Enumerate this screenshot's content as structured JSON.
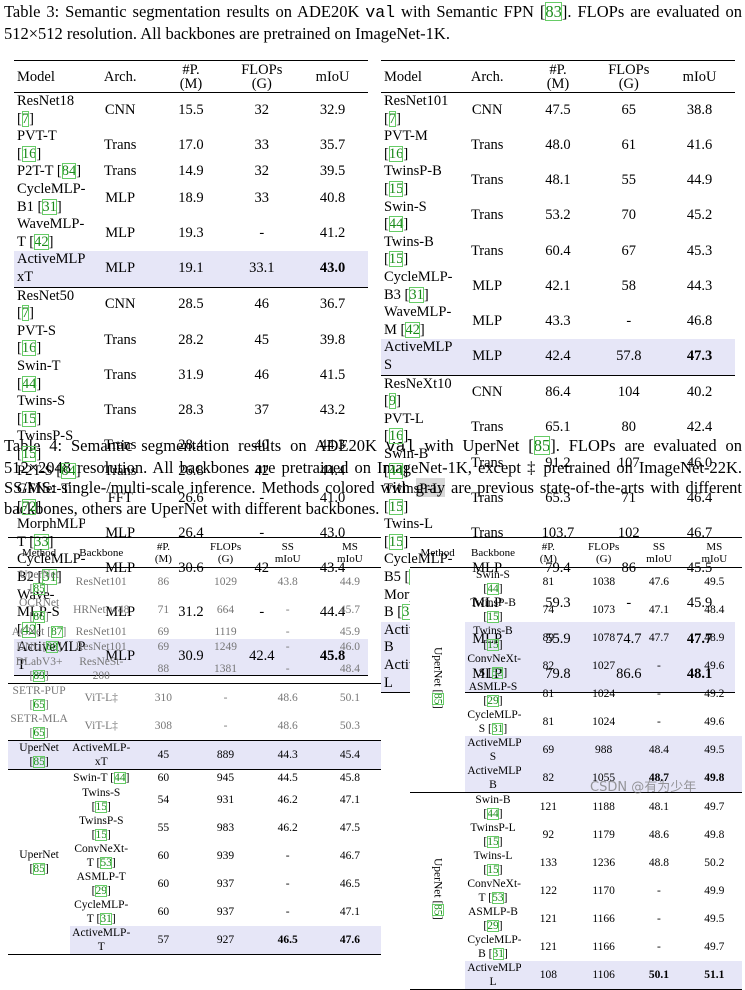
{
  "captions": [
    [
      "Table 3: Semantic segmentation results on ADE20K ",
      "val",
      " with Semantic FPN [83].  FLOPs are evaluated on 512×512 resolution. All backbones are pretrained on ImageNet-1K."
    ],
    [
      "Table 4: Semantic segmentation results on ADE20K ",
      "val",
      " with UperNet [85]. FLOPs are evaluated on 512×2048 resolution.  All backbones are pretrained on ImageNet-1K, except ‡ pretrained on ImageNet-22K. SS/MS: single-/multi-scale inference.  Methods colored with ",
      "gray",
      " are previous state-of-the-arts with different backbones, others are UperNet with different backbones."
    ]
  ],
  "tables": [
    {
      "header": [
        "Model",
        "Arch.",
        "#P.\n(M)",
        "FLOPs\n(G)",
        "mIoU"
      ],
      "rows": [
        {
          "cells": [
            "ResNet18 [7]",
            "CNN",
            "15.5",
            "32",
            "32.9"
          ]
        },
        {
          "cells": [
            "PVT-T [16]",
            "Trans",
            "17.0",
            "33",
            "35.7"
          ]
        },
        {
          "cells": [
            "P2T-T [84]",
            "Trans",
            "14.9",
            "32",
            "39.5"
          ]
        },
        {
          "cells": [
            "CycleMLP-B1 [31]",
            "MLP",
            "18.9",
            "33",
            "40.8"
          ]
        },
        {
          "cells": [
            "WaveMLP-T [42]",
            "MLP",
            "19.3",
            "-",
            "41.2"
          ]
        },
        {
          "cells": [
            "ActiveMLP-xT",
            "MLP",
            "19.1",
            "33.1",
            "43.0"
          ],
          "style": "best",
          "sep": true
        },
        {
          "cells": [
            "ResNet50 [7]",
            "CNN",
            "28.5",
            "46",
            "36.7"
          ]
        },
        {
          "cells": [
            "PVT-S [16]",
            "Trans",
            "28.2",
            "45",
            "39.8"
          ]
        },
        {
          "cells": [
            "Swin-T [44]",
            "Trans",
            "31.9",
            "46",
            "41.5"
          ]
        },
        {
          "cells": [
            "Twins-S [15]",
            "Trans",
            "28.3",
            "37",
            "43.2"
          ]
        },
        {
          "cells": [
            "TwinsP-S [15]",
            "Trans",
            "28.4",
            "40",
            "44.3"
          ]
        },
        {
          "cells": [
            "P2T-S [84]",
            "Trans",
            "26.8",
            "42",
            "44.4"
          ]
        },
        {
          "cells": [
            "GFNet-T [72]",
            "FFT",
            "26.6",
            "-",
            "41.0"
          ]
        },
        {
          "cells": [
            "MorphMLP-T [33]",
            "MLP",
            "26.4",
            "-",
            "43.0"
          ]
        },
        {
          "cells": [
            "CycleMLP-B2 [31]",
            "MLP",
            "30.6",
            "42",
            "43.4"
          ]
        },
        {
          "cells": [
            "Wave-MLP-S [42]",
            "MLP",
            "31.2",
            "-",
            "44.4"
          ]
        },
        {
          "cells": [
            "ActiveMLP-T",
            "MLP",
            "30.9",
            "42.4",
            "45.8"
          ],
          "style": "best"
        }
      ]
    },
    {
      "header": [
        "Model",
        "Arch.",
        "#P.\n(M)",
        "FLOPs\n(G)",
        "mIoU"
      ],
      "rows": [
        {
          "cells": [
            "ResNet101 [7]",
            "CNN",
            "47.5",
            "65",
            "38.8"
          ]
        },
        {
          "cells": [
            "PVT-M [16]",
            "Trans",
            "48.0",
            "61",
            "41.6"
          ]
        },
        {
          "cells": [
            "TwinsP-B [15]",
            "Trans",
            "48.1",
            "55",
            "44.9"
          ]
        },
        {
          "cells": [
            "Swin-S [44]",
            "Trans",
            "53.2",
            "70",
            "45.2"
          ]
        },
        {
          "cells": [
            "Twins-B [15]",
            "Trans",
            "60.4",
            "67",
            "45.3"
          ]
        },
        {
          "cells": [
            "CycleMLP-B3 [31]",
            "MLP",
            "42.1",
            "58",
            "44.3"
          ]
        },
        {
          "cells": [
            "WaveMLP-M [42]",
            "MLP",
            "43.3",
            "-",
            "46.8"
          ]
        },
        {
          "cells": [
            "ActiveMLP-S",
            "MLP",
            "42.4",
            "57.8",
            "47.3"
          ],
          "style": "best",
          "sep": true
        },
        {
          "cells": [
            "ResNeXt101 [9]",
            "CNN",
            "86.4",
            "104",
            "40.2"
          ]
        },
        {
          "cells": [
            "PVT-L [16]",
            "Trans",
            "65.1",
            "80",
            "42.4"
          ]
        },
        {
          "cells": [
            "Swin-B [44]",
            "Trans",
            "91.2",
            "107",
            "46.0"
          ]
        },
        {
          "cells": [
            "TwinsP-L [15]",
            "Trans",
            "65.3",
            "71",
            "46.4"
          ]
        },
        {
          "cells": [
            "Twins-L [15]",
            "Trans",
            "103.7",
            "102",
            "46.7"
          ]
        },
        {
          "cells": [
            "CycleMLP-B5 [31]",
            "MLP",
            "79.4",
            "86",
            "45.5"
          ]
        },
        {
          "cells": [
            "MorphMLP-B [33]",
            "MLP",
            "59.3",
            "-",
            "45.9"
          ]
        },
        {
          "cells": [
            "ActiveMLP-B",
            "MLP",
            "55.9",
            "74.7",
            "47.7"
          ],
          "style": "best"
        },
        {
          "cells": [
            "ActiveMLP-L",
            "MLP",
            "79.8",
            "86.6",
            "48.1"
          ],
          "style": "best"
        }
      ]
    },
    {
      "header": [
        "Method",
        "Backbone",
        "#P.\n(M)",
        "FLOPs\n(G)",
        "SS\nmIoU",
        "MS\nmIoU"
      ],
      "groups": [
        {
          "method": "UperNet [85]",
          "rows": [
            {
              "cells": [
                "ResNet101",
                "86",
                "1029",
                "43.8",
                "44.9"
              ],
              "style": "gray"
            }
          ]
        },
        {
          "method": "OCRNet [86]",
          "rows": [
            {
              "cells": [
                "HRNet-w48",
                "71",
                "664",
                "-",
                "45.7"
              ],
              "style": "gray"
            }
          ]
        },
        {
          "method": "ACNet [87]",
          "rows": [
            {
              "cells": [
                "ResNet101",
                "69",
                "1119",
                "-",
                "45.9"
              ],
              "style": "gray"
            }
          ]
        },
        {
          "method": "DNL [88]",
          "rows": [
            {
              "cells": [
                "ResNet101",
                "69",
                "1249",
                "-",
                "46.0"
              ],
              "style": "gray"
            }
          ]
        },
        {
          "method": "DLabV3+ [89]",
          "rows": [
            {
              "cells": [
                "ResNeSt-200",
                "88",
                "1381",
                "-",
                "48.4"
              ],
              "style": "gray"
            }
          ],
          "sep": true
        },
        {
          "method": "SETR-PUP [65]",
          "rows": [
            {
              "cells": [
                "ViT-L‡",
                "310",
                "-",
                "48.6",
                "50.1"
              ],
              "style": "gray"
            }
          ]
        },
        {
          "method": "SETR-MLA [65]",
          "rows": [
            {
              "cells": [
                "ViT-L‡",
                "308",
                "-",
                "48.6",
                "50.3"
              ],
              "style": "gray"
            }
          ],
          "sep": true
        },
        {
          "method": "UperNet [85]",
          "rows": [
            {
              "cells": [
                "ActiveMLP-xT",
                "45",
                "889",
                "44.3",
                "45.4"
              ],
              "style": "active"
            }
          ],
          "sep": true
        },
        {
          "method": "UperNet [85]",
          "rows": [
            {
              "cells": [
                "Swin-T [44]",
                "60",
                "945",
                "44.5",
                "45.8"
              ]
            },
            {
              "cells": [
                "Twins-S [15]",
                "54",
                "931",
                "46.2",
                "47.1"
              ]
            },
            {
              "cells": [
                "TwinsP-S [15]",
                "55",
                "983",
                "46.2",
                "47.5"
              ]
            },
            {
              "cells": [
                "ConvNeXt-T [53]",
                "60",
                "939",
                "-",
                "46.7"
              ]
            },
            {
              "cells": [
                "ASMLP-T [29]",
                "60",
                "937",
                "-",
                "46.5"
              ]
            },
            {
              "cells": [
                "CycleMLP-T [31]",
                "60",
                "937",
                "-",
                "47.1"
              ]
            },
            {
              "cells": [
                "ActiveMLP-T",
                "57",
                "927",
                "46.5",
                "47.6"
              ],
              "style": "best"
            }
          ]
        }
      ]
    },
    {
      "header": [
        "Method",
        "Backbone",
        "#P.\n(M)",
        "FLOPs\n(G)",
        "SS\nmIoU",
        "MS\nmIoU"
      ],
      "vertical_method": true,
      "groups": [
        {
          "method": "UperNet [85]",
          "sep": true,
          "rows": [
            {
              "cells": [
                "Swin-S [44]",
                "81",
                "1038",
                "47.6",
                "49.5"
              ]
            },
            {
              "cells": [
                "TwinsP-B [15]",
                "74",
                "1073",
                "47.1",
                "48.4"
              ]
            },
            {
              "cells": [
                "Twins-B [15]",
                "89",
                "1078",
                "47.7",
                "48.9"
              ]
            },
            {
              "cells": [
                "ConvNeXt-S [53]",
                "82",
                "1027",
                "-",
                "49.6"
              ]
            },
            {
              "cells": [
                "ASMLP-S [29]",
                "81",
                "1024",
                "-",
                "49.2"
              ]
            },
            {
              "cells": [
                "CycleMLP-S [31]",
                "81",
                "1024",
                "-",
                "49.6"
              ]
            },
            {
              "cells": [
                "ActiveMLP-S",
                "69",
                "988",
                "48.4",
                "49.5"
              ],
              "style": "active"
            },
            {
              "cells": [
                "ActiveMLP-B",
                "82",
                "1055",
                "48.7",
                "49.8"
              ],
              "style": "best"
            }
          ]
        },
        {
          "method": "UperNet [85]",
          "rows": [
            {
              "cells": [
                "Swin-B [44]",
                "121",
                "1188",
                "48.1",
                "49.7"
              ]
            },
            {
              "cells": [
                "TwinsP-L [15]",
                "92",
                "1179",
                "48.6",
                "49.8"
              ]
            },
            {
              "cells": [
                "Twins-L [15]",
                "133",
                "1236",
                "48.8",
                "50.2"
              ]
            },
            {
              "cells": [
                "ConvNeXt-T [53]",
                "122",
                "1170",
                "-",
                "49.9"
              ]
            },
            {
              "cells": [
                "ASMLP-B [29]",
                "121",
                "1166",
                "-",
                "49.5"
              ]
            },
            {
              "cells": [
                "CycleMLP-B [31]",
                "121",
                "1166",
                "-",
                "49.7"
              ]
            },
            {
              "cells": [
                "ActiveMLP-L",
                "108",
                "1106",
                "50.1",
                "51.1"
              ],
              "style": "best"
            }
          ]
        }
      ]
    }
  ],
  "watermark": "CSDN @有为少年"
}
